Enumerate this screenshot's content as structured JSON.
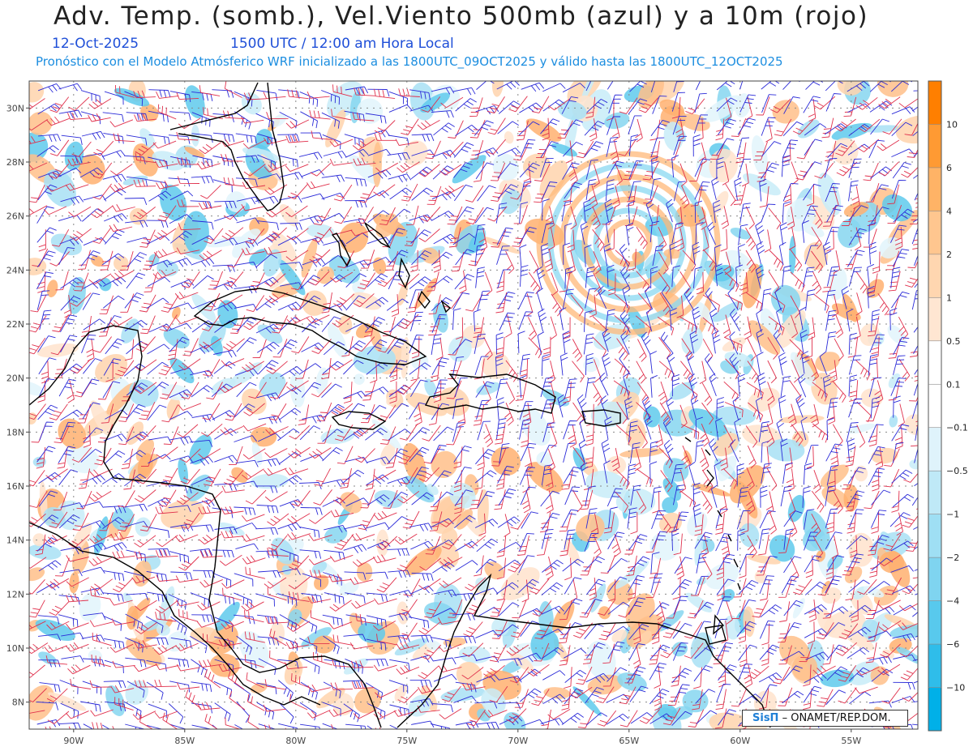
{
  "header": {
    "title": "Adv. Temp. (somb.), Vel.Viento 500mb (azul) y a 10m (rojo)",
    "date": "12-Oct-2025",
    "time": "1500 UTC / 12:00 am Hora Local",
    "model_line": "Pronóstico con el Modelo Atmósferico WRF inicializado a las 1800UTC_09OCT2025 y válido hasta las  1800UTC_12OCT2025"
  },
  "map": {
    "lat_labels": [
      "30N",
      "28N",
      "26N",
      "24N",
      "22N",
      "20N",
      "18N",
      "16N",
      "14N",
      "12N",
      "10N",
      "8N"
    ],
    "lon_labels": [
      "90W",
      "85W",
      "80W",
      "75W",
      "70W",
      "65W",
      "60W",
      "55W"
    ],
    "lat_values": [
      30,
      28,
      26,
      24,
      22,
      20,
      18,
      16,
      14,
      12,
      10,
      8
    ],
    "lon_values": [
      -90,
      -85,
      -80,
      -75,
      -70,
      -65,
      -60,
      -55
    ],
    "lat_range": [
      7,
      31
    ],
    "lon_range": [
      -92,
      -52
    ],
    "wind_500mb_color": "#2a2ad8",
    "wind_10m_color": "#e0304c",
    "coast_color": "#000000"
  },
  "colorbar": {
    "labels": [
      "10",
      "6",
      "4",
      "2",
      "1",
      "0.5",
      "0.1",
      "−0.1",
      "−0.5",
      "−1",
      "−2",
      "−4",
      "−6",
      "−10"
    ],
    "colors": [
      "#ff7f00",
      "#ff9a33",
      "#ffb366",
      "#ffc68f",
      "#ffd6b0",
      "#ffe6d2",
      "#ffffff",
      "#ffffff",
      "#dff3fb",
      "#bfe9f7",
      "#9fdff4",
      "#7fd4f0",
      "#58c9ed",
      "#2fbdea",
      "#00b0e8"
    ]
  },
  "credit": {
    "logo": "SisΠ",
    "text": "– ONAMET/REP.DOM."
  }
}
